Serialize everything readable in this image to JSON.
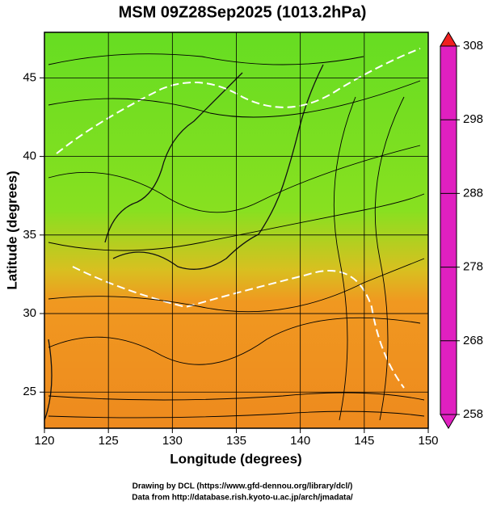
{
  "chart_data": {
    "type": "map",
    "title": "MSM 09Z28Sep2025 (1013.2hPa)",
    "xlabel": "Longitude (degrees)",
    "ylabel": "Latitude  (degrees)",
    "xlim": [
      120,
      150
    ],
    "xticks": [
      120,
      125,
      130,
      135,
      140,
      145,
      150
    ],
    "ylim": [
      22.7,
      47.9
    ],
    "yticks": [
      25,
      30,
      35,
      40,
      45
    ],
    "grid": true,
    "colorbar": {
      "lim": [
        258,
        308
      ],
      "ticks": [
        258,
        268,
        278,
        288,
        298,
        308
      ],
      "colors": [
        "#e020c0",
        "#1030e0",
        "#10d0e0",
        "#20c020",
        "#f0f020",
        "#f02020"
      ]
    },
    "credits": [
      "Drawing by DCL (https://www.gfd-dennou.org/library/dcl/)",
      "Data from http://database.rish.kyoto-u.ac.jp/arch/jmadata/"
    ]
  }
}
